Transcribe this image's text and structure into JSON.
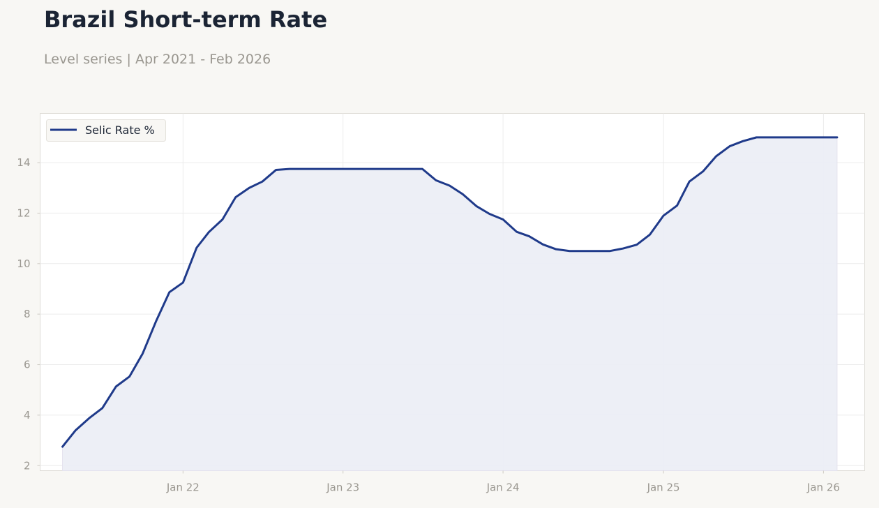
{
  "title": "Brazil Short-term Rate",
  "subtitle": "Level series | Apr 2021 - Feb 2026",
  "colors": {
    "line": "#1f3a8a",
    "fill": "#eceef5",
    "grid": "#ececec",
    "axis_text": "#9a9790",
    "background": "#f8f7f4",
    "plot_background": "#ffffff"
  },
  "chart_data": {
    "type": "area",
    "title": "Brazil Short-term Rate",
    "xlabel": "",
    "ylabel": "",
    "x_ticks": [
      "Jan 22",
      "Jan 23",
      "Jan 24",
      "Jan 25",
      "Jan 26"
    ],
    "y_ticks": [
      2,
      4,
      6,
      8,
      10,
      12,
      14
    ],
    "ylim": [
      1.8,
      15.95
    ],
    "xlim": [
      "2021-02-09",
      "2026-04-05"
    ],
    "grid": true,
    "legend_position": "top-left",
    "series": [
      {
        "name": "Selic Rate %",
        "x": [
          "2021-04",
          "2021-05",
          "2021-06",
          "2021-07",
          "2021-08",
          "2021-09",
          "2021-10",
          "2021-11",
          "2021-12",
          "2022-01",
          "2022-02",
          "2022-03",
          "2022-04",
          "2022-05",
          "2022-06",
          "2022-07",
          "2022-08",
          "2022-09",
          "2022-10",
          "2022-11",
          "2022-12",
          "2023-01",
          "2023-02",
          "2023-03",
          "2023-04",
          "2023-05",
          "2023-06",
          "2023-07",
          "2023-08",
          "2023-09",
          "2023-10",
          "2023-11",
          "2023-12",
          "2024-01",
          "2024-02",
          "2024-03",
          "2024-04",
          "2024-05",
          "2024-06",
          "2024-07",
          "2024-08",
          "2024-09",
          "2024-10",
          "2024-11",
          "2024-12",
          "2025-01",
          "2025-02",
          "2025-03",
          "2025-04",
          "2025-05",
          "2025-06",
          "2025-07",
          "2025-08",
          "2025-09",
          "2025-10",
          "2025-11",
          "2025-12",
          "2026-01",
          "2026-02"
        ],
        "values": [
          2.75,
          3.4,
          3.88,
          4.28,
          5.13,
          5.53,
          6.44,
          7.74,
          8.87,
          9.25,
          10.63,
          11.25,
          11.75,
          12.63,
          13.0,
          13.25,
          13.71,
          13.75,
          13.75,
          13.75,
          13.75,
          13.75,
          13.75,
          13.75,
          13.75,
          13.75,
          13.75,
          13.75,
          13.3,
          13.09,
          12.75,
          12.28,
          11.97,
          11.75,
          11.26,
          11.08,
          10.76,
          10.57,
          10.5,
          10.5,
          10.5,
          10.5,
          10.6,
          10.75,
          11.15,
          11.9,
          12.3,
          13.25,
          13.65,
          14.25,
          14.65,
          14.85,
          15.0,
          15.0,
          15.0,
          15.0,
          15.0,
          15.0,
          15.0
        ]
      }
    ]
  }
}
